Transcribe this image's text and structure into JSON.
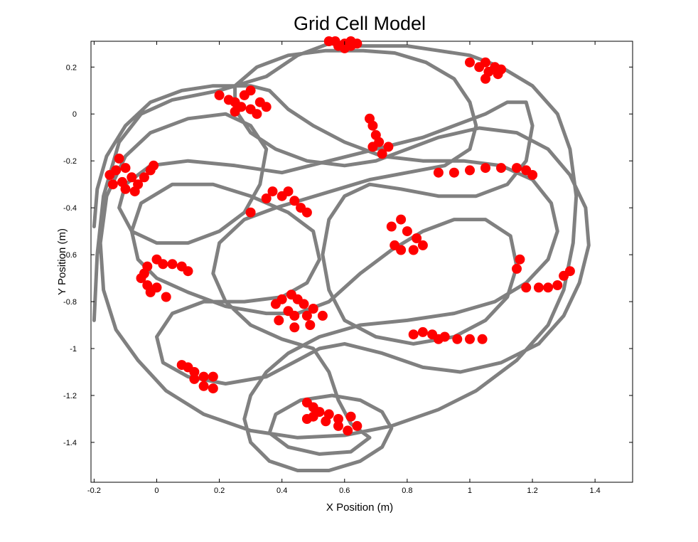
{
  "chart_data": {
    "type": "scatter",
    "title": "Grid Cell Model",
    "xlabel": "X Position (m)",
    "ylabel": "Y Position (m)",
    "xlim": [
      -0.21,
      1.52
    ],
    "ylim": [
      -1.57,
      0.31
    ],
    "xticks": [
      -0.2,
      0,
      0.2,
      0.4,
      0.6,
      0.8,
      1,
      1.2,
      1.4
    ],
    "xtick_labels": [
      "-0.2",
      "0",
      "0.2",
      "0.4",
      "0.6",
      "0.8",
      "1",
      "1.2",
      "1.4"
    ],
    "yticks": [
      0.2,
      0,
      -0.2,
      -0.4,
      -0.6,
      -0.8,
      -1,
      -1.2,
      -1.4
    ],
    "ytick_labels": [
      "0.2",
      "0",
      "-0.2",
      "-0.4",
      "-0.6",
      "-0.8",
      "-1",
      "-1.2",
      "-1.4"
    ],
    "grid": false,
    "colors": {
      "trajectory": "#808080",
      "spikes": "#ff0000"
    },
    "trajectory": [
      [
        -0.2,
        -0.88
      ],
      [
        -0.19,
        -0.6
      ],
      [
        -0.17,
        -0.35
      ],
      [
        -0.12,
        -0.12
      ],
      [
        -0.05,
        0.0
      ],
      [
        0.05,
        0.06
      ],
      [
        0.2,
        0.1
      ],
      [
        0.35,
        0.16
      ],
      [
        0.45,
        0.25
      ],
      [
        0.55,
        0.3
      ],
      [
        0.65,
        0.29
      ],
      [
        0.8,
        0.29
      ],
      [
        0.9,
        0.27
      ],
      [
        1.0,
        0.25
      ],
      [
        1.1,
        0.2
      ],
      [
        1.2,
        0.12
      ],
      [
        1.28,
        0.0
      ],
      [
        1.32,
        -0.15
      ],
      [
        1.34,
        -0.35
      ],
      [
        1.33,
        -0.55
      ],
      [
        1.3,
        -0.75
      ],
      [
        1.25,
        -0.9
      ],
      [
        1.15,
        -1.05
      ],
      [
        1.02,
        -1.18
      ],
      [
        0.9,
        -1.26
      ],
      [
        0.75,
        -1.33
      ],
      [
        0.6,
        -1.37
      ],
      [
        0.45,
        -1.38
      ],
      [
        0.3,
        -1.35
      ],
      [
        0.15,
        -1.28
      ],
      [
        0.03,
        -1.18
      ],
      [
        -0.06,
        -1.05
      ],
      [
        -0.13,
        -0.92
      ],
      [
        -0.17,
        -0.75
      ],
      [
        -0.18,
        -0.55
      ],
      [
        -0.16,
        -0.35
      ],
      [
        -0.1,
        -0.18
      ],
      [
        -0.02,
        -0.08
      ],
      [
        0.1,
        -0.02
      ],
      [
        0.22,
        0.0
      ],
      [
        0.3,
        -0.05
      ],
      [
        0.35,
        -0.15
      ],
      [
        0.33,
        -0.3
      ],
      [
        0.28,
        -0.42
      ],
      [
        0.2,
        -0.5
      ],
      [
        0.1,
        -0.55
      ],
      [
        0.0,
        -0.55
      ],
      [
        -0.08,
        -0.5
      ],
      [
        -0.12,
        -0.4
      ],
      [
        -0.1,
        -0.3
      ],
      [
        -0.02,
        -0.22
      ],
      [
        0.1,
        -0.2
      ],
      [
        0.25,
        -0.22
      ],
      [
        0.4,
        -0.25
      ],
      [
        0.55,
        -0.2
      ],
      [
        0.7,
        -0.15
      ],
      [
        0.85,
        -0.1
      ],
      [
        0.95,
        -0.05
      ],
      [
        1.05,
        0.0
      ],
      [
        1.12,
        0.05
      ],
      [
        1.18,
        0.05
      ],
      [
        1.2,
        -0.05
      ],
      [
        1.18,
        -0.2
      ],
      [
        1.12,
        -0.3
      ],
      [
        1.02,
        -0.35
      ],
      [
        0.9,
        -0.35
      ],
      [
        0.78,
        -0.32
      ],
      [
        0.68,
        -0.3
      ],
      [
        0.6,
        -0.35
      ],
      [
        0.55,
        -0.45
      ],
      [
        0.53,
        -0.6
      ],
      [
        0.55,
        -0.75
      ],
      [
        0.6,
        -0.88
      ],
      [
        0.7,
        -0.95
      ],
      [
        0.82,
        -0.98
      ],
      [
        0.95,
        -0.95
      ],
      [
        1.05,
        -0.88
      ],
      [
        1.12,
        -0.78
      ],
      [
        1.15,
        -0.65
      ],
      [
        1.13,
        -0.52
      ],
      [
        1.05,
        -0.45
      ],
      [
        0.95,
        -0.45
      ],
      [
        0.85,
        -0.5
      ],
      [
        0.75,
        -0.58
      ],
      [
        0.65,
        -0.68
      ],
      [
        0.55,
        -0.8
      ],
      [
        0.45,
        -0.85
      ],
      [
        0.35,
        -0.85
      ],
      [
        0.22,
        -0.82
      ],
      [
        0.1,
        -0.76
      ],
      [
        0.0,
        -0.7
      ],
      [
        -0.06,
        -0.62
      ],
      [
        -0.08,
        -0.5
      ],
      [
        -0.05,
        -0.38
      ],
      [
        0.05,
        -0.3
      ],
      [
        0.18,
        -0.3
      ],
      [
        0.3,
        -0.35
      ],
      [
        0.42,
        -0.42
      ],
      [
        0.5,
        -0.5
      ],
      [
        0.52,
        -0.62
      ],
      [
        0.48,
        -0.72
      ],
      [
        0.4,
        -0.78
      ],
      [
        0.28,
        -0.8
      ],
      [
        0.15,
        -0.8
      ],
      [
        0.05,
        -0.85
      ],
      [
        0.0,
        -0.95
      ],
      [
        0.02,
        -1.06
      ],
      [
        0.1,
        -1.12
      ],
      [
        0.22,
        -1.15
      ],
      [
        0.35,
        -1.12
      ],
      [
        0.45,
        -1.05
      ],
      [
        0.52,
        -1.0
      ],
      [
        0.6,
        -0.98
      ],
      [
        0.72,
        -1.02
      ],
      [
        0.85,
        -1.08
      ],
      [
        0.97,
        -1.1
      ],
      [
        1.1,
        -1.06
      ],
      [
        1.22,
        -0.98
      ],
      [
        1.3,
        -0.86
      ],
      [
        1.35,
        -0.72
      ],
      [
        1.38,
        -0.56
      ],
      [
        1.37,
        -0.4
      ],
      [
        1.32,
        -0.26
      ],
      [
        1.25,
        -0.15
      ],
      [
        1.15,
        -0.08
      ],
      [
        1.03,
        -0.06
      ],
      [
        0.9,
        -0.1
      ],
      [
        0.8,
        -0.15
      ],
      [
        0.7,
        -0.2
      ],
      [
        0.6,
        -0.22
      ],
      [
        0.48,
        -0.2
      ],
      [
        0.38,
        -0.15
      ],
      [
        0.3,
        -0.08
      ],
      [
        0.25,
        0.02
      ],
      [
        0.25,
        0.12
      ],
      [
        0.32,
        0.2
      ],
      [
        0.42,
        0.25
      ],
      [
        0.54,
        0.27
      ],
      [
        0.66,
        0.27
      ],
      [
        0.76,
        0.26
      ],
      [
        0.86,
        0.22
      ],
      [
        0.95,
        0.15
      ],
      [
        1.0,
        0.05
      ],
      [
        1.02,
        -0.05
      ],
      [
        1.0,
        -0.15
      ],
      [
        0.92,
        -0.22
      ],
      [
        0.8,
        -0.25
      ],
      [
        0.68,
        -0.28
      ],
      [
        0.58,
        -0.32
      ],
      [
        0.48,
        -0.36
      ],
      [
        0.38,
        -0.4
      ],
      [
        0.28,
        -0.45
      ],
      [
        0.2,
        -0.55
      ],
      [
        0.18,
        -0.68
      ],
      [
        0.22,
        -0.8
      ],
      [
        0.3,
        -0.9
      ],
      [
        0.4,
        -0.96
      ],
      [
        0.5,
        -1.0
      ],
      [
        0.55,
        -1.1
      ],
      [
        0.58,
        -1.22
      ],
      [
        0.62,
        -1.32
      ],
      [
        0.68,
        -1.38
      ],
      [
        0.62,
        -1.44
      ],
      [
        0.52,
        -1.45
      ],
      [
        0.42,
        -1.42
      ],
      [
        0.36,
        -1.36
      ],
      [
        0.38,
        -1.28
      ],
      [
        0.46,
        -1.22
      ],
      [
        0.56,
        -1.2
      ],
      [
        0.65,
        -1.22
      ],
      [
        0.72,
        -1.27
      ],
      [
        0.75,
        -1.34
      ],
      [
        0.72,
        -1.42
      ],
      [
        0.65,
        -1.48
      ],
      [
        0.55,
        -1.52
      ],
      [
        0.45,
        -1.52
      ],
      [
        0.36,
        -1.48
      ],
      [
        0.3,
        -1.4
      ],
      [
        0.28,
        -1.3
      ],
      [
        0.3,
        -1.2
      ],
      [
        0.35,
        -1.1
      ],
      [
        0.42,
        -1.02
      ],
      [
        0.52,
        -0.95
      ],
      [
        0.65,
        -0.9
      ],
      [
        0.8,
        -0.88
      ],
      [
        0.95,
        -0.85
      ],
      [
        1.08,
        -0.8
      ],
      [
        1.18,
        -0.72
      ],
      [
        1.25,
        -0.62
      ],
      [
        1.28,
        -0.5
      ],
      [
        1.26,
        -0.38
      ],
      [
        1.2,
        -0.28
      ],
      [
        1.1,
        -0.22
      ],
      [
        0.98,
        -0.2
      ],
      [
        0.85,
        -0.2
      ],
      [
        0.72,
        -0.18
      ],
      [
        0.6,
        -0.12
      ],
      [
        0.5,
        -0.05
      ],
      [
        0.42,
        0.02
      ],
      [
        0.36,
        0.1
      ],
      [
        0.3,
        0.12
      ],
      [
        0.18,
        0.12
      ],
      [
        0.08,
        0.1
      ],
      [
        -0.02,
        0.05
      ],
      [
        -0.1,
        -0.05
      ],
      [
        -0.16,
        -0.18
      ],
      [
        -0.19,
        -0.32
      ],
      [
        -0.2,
        -0.48
      ]
    ],
    "spikes": [
      [
        0.55,
        0.31
      ],
      [
        0.57,
        0.31
      ],
      [
        0.6,
        0.3
      ],
      [
        0.62,
        0.31
      ],
      [
        0.64,
        0.3
      ],
      [
        0.58,
        0.29
      ],
      [
        0.6,
        0.28
      ],
      [
        0.62,
        0.29
      ],
      [
        1.0,
        0.22
      ],
      [
        1.03,
        0.2
      ],
      [
        1.05,
        0.22
      ],
      [
        1.08,
        0.2
      ],
      [
        1.06,
        0.18
      ],
      [
        1.09,
        0.17
      ],
      [
        1.05,
        0.15
      ],
      [
        1.1,
        0.19
      ],
      [
        0.2,
        0.08
      ],
      [
        0.23,
        0.06
      ],
      [
        0.25,
        0.05
      ],
      [
        0.28,
        0.08
      ],
      [
        0.3,
        0.1
      ],
      [
        0.27,
        0.03
      ],
      [
        0.3,
        0.02
      ],
      [
        0.33,
        0.05
      ],
      [
        0.32,
        0.0
      ],
      [
        0.35,
        0.03
      ],
      [
        0.25,
        0.01
      ],
      [
        0.68,
        -0.02
      ],
      [
        0.69,
        -0.05
      ],
      [
        0.7,
        -0.09
      ],
      [
        0.71,
        -0.12
      ],
      [
        0.69,
        -0.14
      ],
      [
        0.72,
        -0.17
      ],
      [
        0.74,
        -0.14
      ],
      [
        -0.15,
        -0.26
      ],
      [
        -0.13,
        -0.24
      ],
      [
        -0.12,
        -0.19
      ],
      [
        -0.1,
        -0.23
      ],
      [
        -0.11,
        -0.29
      ],
      [
        -0.08,
        -0.27
      ],
      [
        -0.06,
        -0.3
      ],
      [
        -0.04,
        -0.27
      ],
      [
        -0.02,
        -0.24
      ],
      [
        -0.01,
        -0.22
      ],
      [
        -0.07,
        -0.33
      ],
      [
        -0.1,
        -0.32
      ],
      [
        -0.14,
        -0.3
      ],
      [
        0.9,
        -0.25
      ],
      [
        0.95,
        -0.25
      ],
      [
        1.0,
        -0.24
      ],
      [
        1.05,
        -0.23
      ],
      [
        1.1,
        -0.23
      ],
      [
        1.15,
        -0.23
      ],
      [
        1.18,
        -0.24
      ],
      [
        1.2,
        -0.26
      ],
      [
        0.35,
        -0.36
      ],
      [
        0.37,
        -0.33
      ],
      [
        0.4,
        -0.35
      ],
      [
        0.42,
        -0.33
      ],
      [
        0.44,
        -0.37
      ],
      [
        0.46,
        -0.4
      ],
      [
        0.48,
        -0.42
      ],
      [
        0.3,
        -0.42
      ],
      [
        0.75,
        -0.48
      ],
      [
        0.78,
        -0.45
      ],
      [
        0.8,
        -0.5
      ],
      [
        0.83,
        -0.53
      ],
      [
        0.85,
        -0.56
      ],
      [
        0.82,
        -0.58
      ],
      [
        0.76,
        -0.56
      ],
      [
        0.78,
        -0.58
      ],
      [
        0.0,
        -0.62
      ],
      [
        0.02,
        -0.64
      ],
      [
        0.05,
        -0.64
      ],
      [
        0.08,
        -0.65
      ],
      [
        0.1,
        -0.67
      ],
      [
        -0.03,
        -0.65
      ],
      [
        -0.04,
        -0.68
      ],
      [
        -0.05,
        -0.7
      ],
      [
        -0.03,
        -0.73
      ],
      [
        -0.02,
        -0.76
      ],
      [
        0.0,
        -0.74
      ],
      [
        0.03,
        -0.78
      ],
      [
        1.16,
        -0.62
      ],
      [
        1.15,
        -0.66
      ],
      [
        1.18,
        -0.74
      ],
      [
        1.22,
        -0.74
      ],
      [
        1.25,
        -0.74
      ],
      [
        1.28,
        -0.73
      ],
      [
        1.3,
        -0.69
      ],
      [
        1.32,
        -0.67
      ],
      [
        0.38,
        -0.81
      ],
      [
        0.4,
        -0.79
      ],
      [
        0.43,
        -0.77
      ],
      [
        0.45,
        -0.79
      ],
      [
        0.47,
        -0.81
      ],
      [
        0.5,
        -0.83
      ],
      [
        0.42,
        -0.84
      ],
      [
        0.44,
        -0.86
      ],
      [
        0.48,
        -0.86
      ],
      [
        0.53,
        -0.86
      ],
      [
        0.39,
        -0.88
      ],
      [
        0.44,
        -0.91
      ],
      [
        0.49,
        -0.9
      ],
      [
        0.82,
        -0.94
      ],
      [
        0.85,
        -0.93
      ],
      [
        0.88,
        -0.94
      ],
      [
        0.92,
        -0.95
      ],
      [
        0.96,
        -0.96
      ],
      [
        1.0,
        -0.96
      ],
      [
        1.04,
        -0.96
      ],
      [
        0.9,
        -0.96
      ],
      [
        0.08,
        -1.07
      ],
      [
        0.1,
        -1.08
      ],
      [
        0.12,
        -1.1
      ],
      [
        0.15,
        -1.12
      ],
      [
        0.18,
        -1.12
      ],
      [
        0.12,
        -1.13
      ],
      [
        0.15,
        -1.16
      ],
      [
        0.18,
        -1.17
      ],
      [
        0.48,
        -1.23
      ],
      [
        0.5,
        -1.25
      ],
      [
        0.52,
        -1.27
      ],
      [
        0.55,
        -1.28
      ],
      [
        0.58,
        -1.3
      ],
      [
        0.62,
        -1.29
      ],
      [
        0.5,
        -1.29
      ],
      [
        0.54,
        -1.31
      ],
      [
        0.58,
        -1.33
      ],
      [
        0.61,
        -1.35
      ],
      [
        0.64,
        -1.33
      ],
      [
        0.48,
        -1.3
      ]
    ]
  }
}
